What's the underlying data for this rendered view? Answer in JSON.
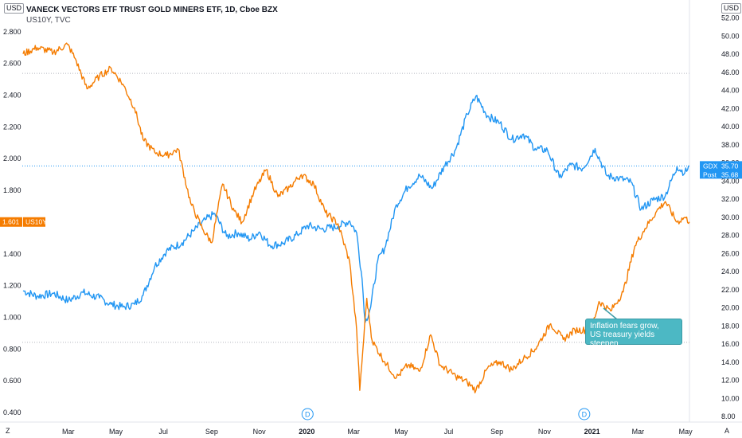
{
  "header": {
    "title": "VANECK VECTORS ETF TRUST GOLD MINERS ETF, 1D, Cboe BZX",
    "subtitle": "US10Y, TVC"
  },
  "corner": {
    "left_unit": "USD",
    "right_unit": "USD",
    "bottom_left": "Z",
    "bottom_right": "A"
  },
  "annotation": {
    "line1": "Inflation fears grow,",
    "line2": "US treasury yields steepen"
  },
  "colors": {
    "gdx": "#2196f3",
    "us10y": "#f57c00",
    "callout": "#4cb8c4",
    "grid": "#e0e3eb"
  },
  "badges": {
    "us10y_value": "1.601",
    "us10y_name": "US10Y",
    "gdx_name": "GDX",
    "gdx_value": "35.70",
    "post_name": "Post",
    "post_value": "35.68"
  },
  "event_markers": [
    {
      "label": "D",
      "date": "2020-01-02"
    },
    {
      "label": "D",
      "date": "2020-12-22"
    }
  ],
  "chart_data": {
    "type": "line",
    "x_range": [
      "2019-01-01",
      "2021-05-06"
    ],
    "left_axis": {
      "series": "US10Y",
      "ylim": [
        0.34,
        3.0
      ],
      "ticks": [
        "0.400",
        "0.600",
        "0.800",
        "1.000",
        "1.200",
        "1.400",
        "1.600",
        "1.800",
        "2.000",
        "2.200",
        "2.400",
        "2.600",
        "2.800"
      ]
    },
    "right_axis": {
      "series": "GDX",
      "ylim": [
        7.4,
        54.0
      ],
      "ticks": [
        "8.00",
        "10.00",
        "12.00",
        "14.00",
        "16.00",
        "18.00",
        "20.00",
        "22.00",
        "24.00",
        "26.00",
        "28.00",
        "30.00",
        "32.00",
        "34.00",
        "36.00",
        "38.00",
        "40.00",
        "42.00",
        "44.00",
        "46.00",
        "48.00",
        "50.00",
        "52.00"
      ]
    },
    "x_ticks": [
      {
        "date": "2019-03-01",
        "label": "Mar",
        "bold": false
      },
      {
        "date": "2019-05-01",
        "label": "May",
        "bold": false
      },
      {
        "date": "2019-07-01",
        "label": "Jul",
        "bold": false
      },
      {
        "date": "2019-09-01",
        "label": "Sep",
        "bold": false
      },
      {
        "date": "2019-11-01",
        "label": "Nov",
        "bold": false
      },
      {
        "date": "2020-01-01",
        "label": "2020",
        "bold": true
      },
      {
        "date": "2020-03-01",
        "label": "Mar",
        "bold": false
      },
      {
        "date": "2020-05-01",
        "label": "May",
        "bold": false
      },
      {
        "date": "2020-07-01",
        "label": "Jul",
        "bold": false
      },
      {
        "date": "2020-09-01",
        "label": "Sep",
        "bold": false
      },
      {
        "date": "2020-11-01",
        "label": "Nov",
        "bold": false
      },
      {
        "date": "2021-01-01",
        "label": "2021",
        "bold": true
      },
      {
        "date": "2021-03-01",
        "label": "Mar",
        "bold": false
      },
      {
        "date": "2021-05-01",
        "label": "May",
        "bold": false
      }
    ],
    "series": [
      {
        "name": "GDX",
        "axis": "right",
        "color": "#2196f3",
        "points": [
          [
            "2019-01-02",
            21.9
          ],
          [
            "2019-01-20",
            21.3
          ],
          [
            "2019-02-10",
            21.6
          ],
          [
            "2019-03-01",
            20.8
          ],
          [
            "2019-03-20",
            21.7
          ],
          [
            "2019-04-10",
            21.1
          ],
          [
            "2019-04-25",
            20.4
          ],
          [
            "2019-05-10",
            20.1
          ],
          [
            "2019-05-25",
            20.4
          ],
          [
            "2019-06-05",
            21.4
          ],
          [
            "2019-06-20",
            24.6
          ],
          [
            "2019-07-05",
            26.3
          ],
          [
            "2019-07-25",
            27.2
          ],
          [
            "2019-08-10",
            28.6
          ],
          [
            "2019-08-25",
            29.8
          ],
          [
            "2019-09-05",
            30.4
          ],
          [
            "2019-09-20",
            27.9
          ],
          [
            "2019-10-05",
            28.3
          ],
          [
            "2019-10-20",
            27.6
          ],
          [
            "2019-11-01",
            28.4
          ],
          [
            "2019-11-15",
            26.9
          ],
          [
            "2019-12-01",
            27.1
          ],
          [
            "2019-12-20",
            28.1
          ],
          [
            "2020-01-02",
            29.1
          ],
          [
            "2020-01-20",
            28.7
          ],
          [
            "2020-02-10",
            29.0
          ],
          [
            "2020-02-25",
            29.6
          ],
          [
            "2020-03-05",
            28.3
          ],
          [
            "2020-03-12",
            23.2
          ],
          [
            "2020-03-16",
            18.4
          ],
          [
            "2020-03-23",
            20.1
          ],
          [
            "2020-04-01",
            25.2
          ],
          [
            "2020-04-10",
            26.6
          ],
          [
            "2020-04-25",
            31.4
          ],
          [
            "2020-05-10",
            33.4
          ],
          [
            "2020-05-25",
            34.6
          ],
          [
            "2020-06-10",
            33.2
          ],
          [
            "2020-06-25",
            35.6
          ],
          [
            "2020-07-10",
            37.5
          ],
          [
            "2020-07-25",
            41.4
          ],
          [
            "2020-08-05",
            43.4
          ],
          [
            "2020-08-20",
            41.2
          ],
          [
            "2020-09-05",
            40.4
          ],
          [
            "2020-09-20",
            38.6
          ],
          [
            "2020-10-05",
            39.2
          ],
          [
            "2020-10-20",
            37.6
          ],
          [
            "2020-11-05",
            37.4
          ],
          [
            "2020-11-20",
            34.4
          ],
          [
            "2020-12-05",
            35.8
          ],
          [
            "2020-12-20",
            35.4
          ],
          [
            "2021-01-05",
            37.6
          ],
          [
            "2021-01-20",
            34.6
          ],
          [
            "2021-02-05",
            34.3
          ],
          [
            "2021-02-20",
            33.9
          ],
          [
            "2021-03-05",
            30.9
          ],
          [
            "2021-03-20",
            31.9
          ],
          [
            "2021-04-05",
            32.4
          ],
          [
            "2021-04-20",
            35.6
          ],
          [
            "2021-04-30",
            34.9
          ],
          [
            "2021-05-06",
            35.68
          ]
        ]
      },
      {
        "name": "US10Y",
        "axis": "left",
        "color": "#f57c00",
        "points": [
          [
            "2019-01-02",
            2.66
          ],
          [
            "2019-01-20",
            2.7
          ],
          [
            "2019-02-10",
            2.67
          ],
          [
            "2019-02-28",
            2.72
          ],
          [
            "2019-03-10",
            2.63
          ],
          [
            "2019-03-25",
            2.44
          ],
          [
            "2019-04-10",
            2.52
          ],
          [
            "2019-04-25",
            2.57
          ],
          [
            "2019-05-10",
            2.47
          ],
          [
            "2019-05-25",
            2.32
          ],
          [
            "2019-06-05",
            2.12
          ],
          [
            "2019-06-20",
            2.04
          ],
          [
            "2019-07-05",
            2.02
          ],
          [
            "2019-07-20",
            2.06
          ],
          [
            "2019-08-05",
            1.72
          ],
          [
            "2019-08-20",
            1.56
          ],
          [
            "2019-09-01",
            1.47
          ],
          [
            "2019-09-15",
            1.84
          ],
          [
            "2019-09-30",
            1.67
          ],
          [
            "2019-10-10",
            1.6
          ],
          [
            "2019-10-25",
            1.79
          ],
          [
            "2019-11-10",
            1.93
          ],
          [
            "2019-11-25",
            1.76
          ],
          [
            "2019-12-10",
            1.82
          ],
          [
            "2019-12-25",
            1.9
          ],
          [
            "2020-01-10",
            1.84
          ],
          [
            "2020-01-25",
            1.66
          ],
          [
            "2020-02-10",
            1.59
          ],
          [
            "2020-02-25",
            1.35
          ],
          [
            "2020-03-05",
            0.92
          ],
          [
            "2020-03-09",
            0.54
          ],
          [
            "2020-03-18",
            1.12
          ],
          [
            "2020-03-25",
            0.85
          ],
          [
            "2020-04-10",
            0.72
          ],
          [
            "2020-04-25",
            0.62
          ],
          [
            "2020-05-10",
            0.7
          ],
          [
            "2020-05-25",
            0.66
          ],
          [
            "2020-06-08",
            0.89
          ],
          [
            "2020-06-20",
            0.7
          ],
          [
            "2020-07-10",
            0.63
          ],
          [
            "2020-07-25",
            0.59
          ],
          [
            "2020-08-05",
            0.54
          ],
          [
            "2020-08-20",
            0.68
          ],
          [
            "2020-09-05",
            0.72
          ],
          [
            "2020-09-20",
            0.67
          ],
          [
            "2020-10-05",
            0.74
          ],
          [
            "2020-10-20",
            0.8
          ],
          [
            "2020-11-09",
            0.96
          ],
          [
            "2020-11-25",
            0.86
          ],
          [
            "2020-12-10",
            0.92
          ],
          [
            "2020-12-31",
            0.92
          ],
          [
            "2021-01-10",
            1.1
          ],
          [
            "2021-01-25",
            1.04
          ],
          [
            "2021-02-10",
            1.16
          ],
          [
            "2021-02-25",
            1.45
          ],
          [
            "2021-03-10",
            1.56
          ],
          [
            "2021-03-25",
            1.67
          ],
          [
            "2021-04-05",
            1.73
          ],
          [
            "2021-04-20",
            1.6
          ],
          [
            "2021-04-30",
            1.63
          ],
          [
            "2021-05-06",
            1.601
          ]
        ]
      }
    ]
  }
}
